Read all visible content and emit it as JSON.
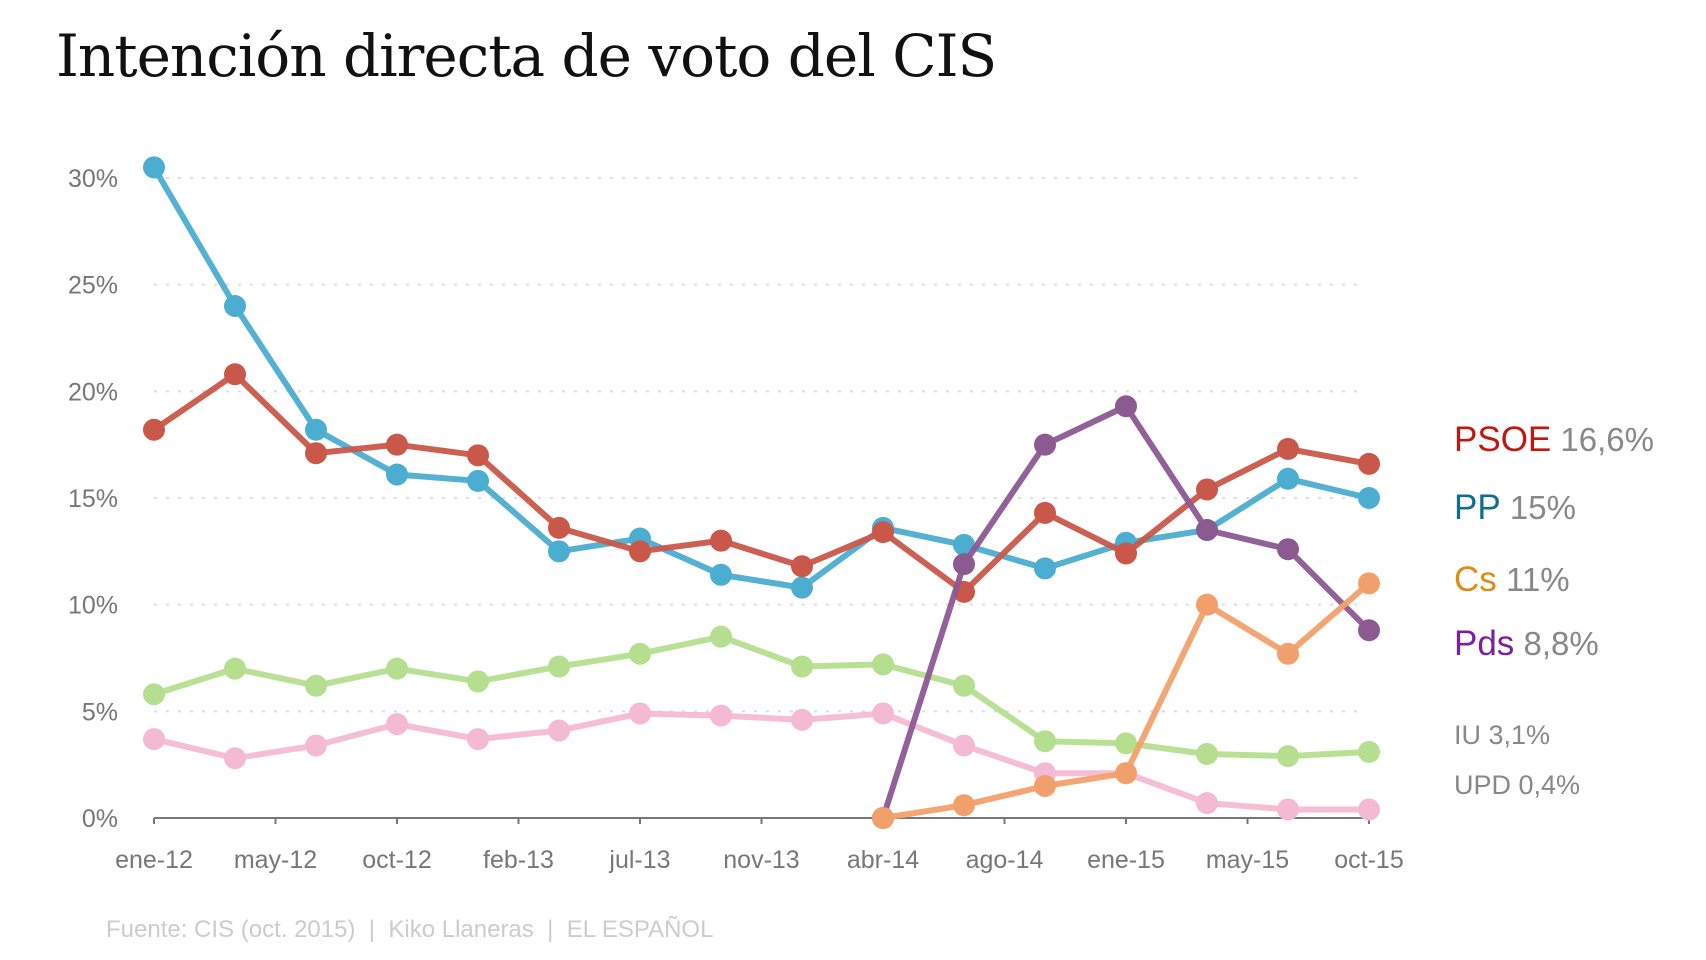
{
  "chart_data": {
    "type": "line",
    "title": "Intención directa de voto del CIS",
    "source": "Fuente: CIS (oct. 2015)  |  Kiko Llaneras  |  EL ESPAÑOL",
    "x": [
      "2012-01",
      "2012-04",
      "2012-07",
      "2012-10",
      "2013-01",
      "2013-04",
      "2013-07",
      "2013-10",
      "2014-01",
      "2014-04",
      "2014-07",
      "2014-10",
      "2015-01",
      "2015-04",
      "2015-07",
      "2015-10"
    ],
    "x_tick_labels": [
      "ene-12",
      "may-12",
      "oct-12",
      "feb-13",
      "jul-13",
      "nov-13",
      "abr-14",
      "ago-14",
      "ene-15",
      "may-15",
      "oct-15"
    ],
    "y_tick_labels": [
      "0%",
      "5%",
      "10%",
      "15%",
      "20%",
      "25%",
      "30%"
    ],
    "y_ticks": [
      0,
      5,
      10,
      15,
      20,
      25,
      30
    ],
    "ylim": [
      0,
      30
    ],
    "grid": "horizontal dotted",
    "legend_placement": "right, end-of-line labels",
    "series": [
      {
        "name": "PSOE",
        "label_value": "16,6%",
        "color": "#c9574a",
        "label_color": "#c0170f",
        "values": [
          18.2,
          20.8,
          17.1,
          17.5,
          17.0,
          13.6,
          12.5,
          13.0,
          11.8,
          13.4,
          10.6,
          14.3,
          12.4,
          15.4,
          17.3,
          16.6
        ]
      },
      {
        "name": "PP",
        "label_value": "15%",
        "color": "#4badd0",
        "label_color": "#0f6e8c",
        "values": [
          30.5,
          24.0,
          18.2,
          16.1,
          15.8,
          12.5,
          13.1,
          11.4,
          10.8,
          13.6,
          12.8,
          11.7,
          12.9,
          13.5,
          15.9,
          15.0
        ]
      },
      {
        "name": "Cs",
        "label_value": "11%",
        "color": "#f2a06b",
        "label_color": "#e08a12",
        "values": [
          null,
          null,
          null,
          null,
          null,
          null,
          null,
          null,
          null,
          0,
          0.6,
          1.5,
          2.1,
          10.0,
          7.7,
          11.0
        ]
      },
      {
        "name": "Pds",
        "label_value": "8,8%",
        "color": "#8b5a91",
        "label_color": "#7a1fa0",
        "values": [
          null,
          null,
          null,
          null,
          null,
          null,
          null,
          null,
          null,
          0,
          11.9,
          17.5,
          19.3,
          13.5,
          12.6,
          8.8
        ]
      },
      {
        "name": "IU",
        "label_value": "3,1%",
        "color": "#b5df8f",
        "label_color": "#888888",
        "values": [
          5.8,
          7.0,
          6.2,
          7.0,
          6.4,
          7.1,
          7.7,
          8.5,
          7.1,
          7.2,
          6.2,
          3.6,
          3.5,
          3.0,
          2.9,
          3.1
        ]
      },
      {
        "name": "UPD",
        "label_value": "0,4%",
        "color": "#f4bad3",
        "label_color": "#888888",
        "values": [
          3.7,
          2.8,
          3.4,
          4.4,
          3.7,
          4.1,
          4.9,
          4.8,
          4.6,
          4.9,
          3.4,
          2.1,
          2.1,
          0.7,
          0.4,
          0.4
        ]
      }
    ]
  }
}
